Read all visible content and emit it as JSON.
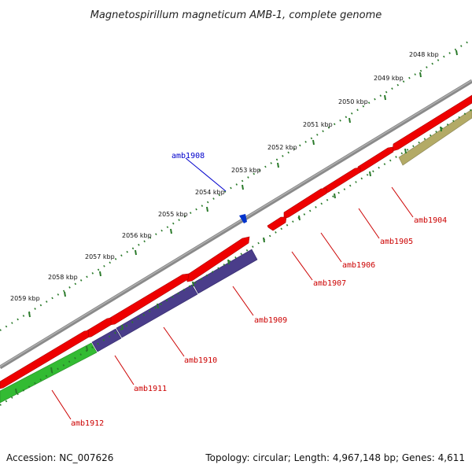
{
  "title": "Magnetospirillum magneticum AMB-1, complete genome",
  "footer": {
    "accession": "Accession: NC_007626",
    "summary": "Topology: circular; Length: 4,967,148 bp; Genes: 4,611"
  },
  "ticks": [
    "2048 kbp",
    "2049 kbp",
    "2050 kbp",
    "2051 kbp",
    "2052 kbp",
    "2053 kbp",
    "2054 kbp",
    "2055 kbp",
    "2056 kbp",
    "2057 kbp",
    "2058 kbp",
    "2059 kbp"
  ],
  "genes": [
    {
      "name": "amb1904",
      "color": "#cc0000"
    },
    {
      "name": "amb1905",
      "color": "#cc0000"
    },
    {
      "name": "amb1906",
      "color": "#cc0000"
    },
    {
      "name": "amb1907",
      "color": "#cc0000"
    },
    {
      "name": "amb1908",
      "color": "#0000cc"
    },
    {
      "name": "amb1909",
      "color": "#cc0000"
    },
    {
      "name": "amb1910",
      "color": "#cc0000"
    },
    {
      "name": "amb1911",
      "color": "#cc0000"
    },
    {
      "name": "amb1912",
      "color": "#cc0000"
    }
  ],
  "colors": {
    "backbone": "#808080",
    "tick_dots": "#2a7a2a",
    "cds_red": "#ee0000",
    "cds_purple": "#4a3d8a",
    "cds_green": "#33bb33",
    "cds_olive": "#b3aa66",
    "marker_blue": "#0033cc"
  },
  "icons": {
    "marker": "blue-arrow-marker-icon"
  }
}
